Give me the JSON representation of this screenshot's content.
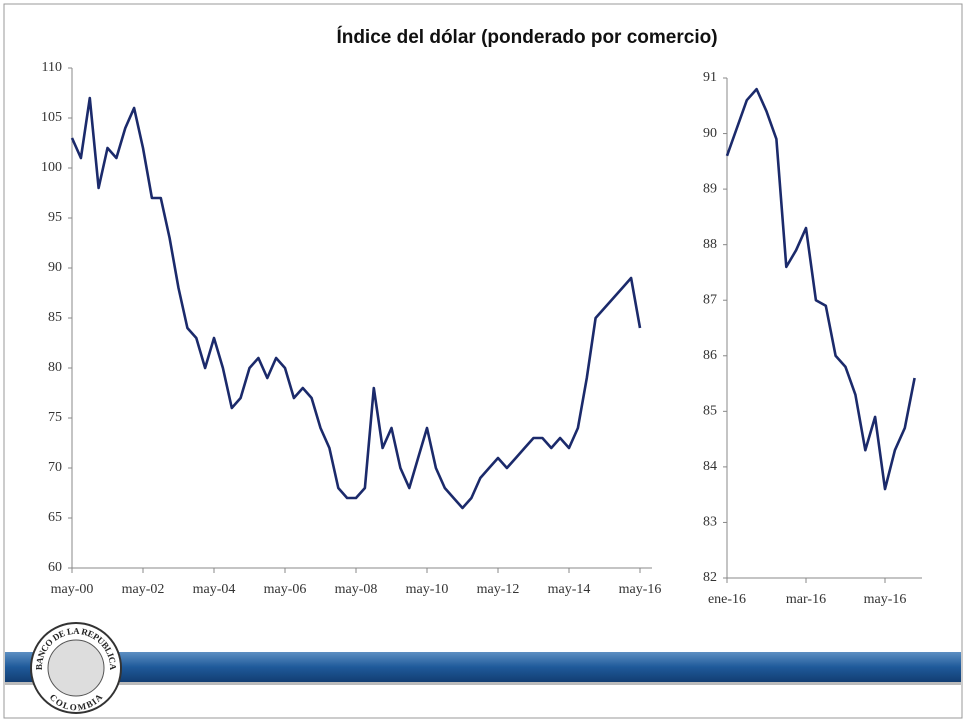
{
  "title": "Índice del dólar (ponderado por comercio)",
  "logo": {
    "top": "BANCO DE LA REPUBLICA",
    "bottom": "COLOMBIA"
  },
  "chart_data": [
    {
      "type": "line",
      "color": "#1b2a6b",
      "categories": [
        "may-00",
        null,
        null,
        null,
        null,
        null,
        null,
        null,
        "may-02",
        null,
        null,
        null,
        null,
        null,
        null,
        null,
        "may-04",
        null,
        null,
        null,
        null,
        null,
        null,
        null,
        "may-06",
        null,
        null,
        null,
        null,
        null,
        null,
        null,
        "may-08",
        null,
        null,
        null,
        null,
        null,
        null,
        null,
        "may-10",
        null,
        null,
        null,
        null,
        null,
        null,
        null,
        "may-12",
        null,
        null,
        null,
        null,
        null,
        null,
        null,
        "may-14",
        null,
        null,
        null,
        null,
        null,
        null,
        null,
        "may-16"
      ],
      "values": [
        103,
        101,
        107,
        98,
        102,
        101,
        104,
        106,
        102,
        97,
        97,
        93,
        88,
        84,
        83,
        80,
        83,
        80,
        76,
        77,
        80,
        81,
        79,
        81,
        80,
        77,
        78,
        77,
        74,
        72,
        68,
        67,
        67,
        68,
        78,
        72,
        74,
        70,
        68,
        71,
        74,
        70,
        68,
        67,
        66,
        67,
        69,
        70,
        71,
        70,
        71,
        72,
        73,
        73,
        72,
        73,
        72,
        74,
        79,
        85,
        86,
        87,
        88,
        89,
        84
      ],
      "ylim": [
        60,
        110
      ],
      "yticks": [
        60,
        65,
        70,
        75,
        80,
        85,
        90,
        95,
        100,
        105,
        110
      ]
    },
    {
      "type": "line",
      "color": "#1b2a6b",
      "categories": [
        "ene-16",
        null,
        null,
        null,
        null,
        null,
        null,
        null,
        "mar-16",
        null,
        null,
        null,
        null,
        null,
        null,
        null,
        "may-16",
        null,
        null,
        null
      ],
      "values": [
        89.6,
        90.1,
        90.6,
        90.8,
        90.4,
        89.9,
        87.6,
        87.9,
        88.3,
        87.0,
        86.9,
        86.0,
        85.8,
        85.3,
        84.3,
        84.9,
        83.6,
        84.3,
        84.7,
        85.6
      ],
      "ylim": [
        82,
        91
      ],
      "yticks": [
        82,
        83,
        84,
        85,
        86,
        87,
        88,
        89,
        90,
        91
      ]
    }
  ]
}
